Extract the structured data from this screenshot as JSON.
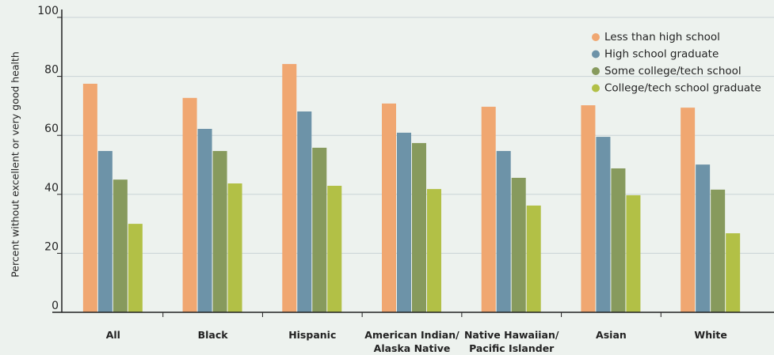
{
  "chart_data": {
    "type": "bar",
    "y_label": "Percent without excellent or very good health",
    "categories": [
      [
        "All"
      ],
      [
        "Black"
      ],
      [
        "Hispanic"
      ],
      [
        "American Indian/",
        "Alaska Native"
      ],
      [
        "Native Hawaiian/",
        "Pacific Islander"
      ],
      [
        "Asian"
      ],
      [
        "White"
      ]
    ],
    "series": [
      {
        "name": "Less than high school",
        "color": "#f0a771",
        "values": [
          77.5,
          72.7,
          84.2,
          70.8,
          69.7,
          70.2,
          69.4
        ]
      },
      {
        "name": "High school graduate",
        "color": "#6d93a8",
        "values": [
          54.7,
          62.2,
          68.1,
          60.9,
          54.7,
          59.5,
          50.1
        ]
      },
      {
        "name": "Some college/tech school",
        "color": "#879a5d",
        "values": [
          45,
          54.7,
          55.8,
          57.4,
          45.6,
          48.8,
          41.6
        ]
      },
      {
        "name": "College/tech school graduate",
        "color": "#b2c046",
        "values": [
          30,
          43.7,
          42.9,
          41.8,
          36.2,
          39.7,
          26.8
        ]
      }
    ],
    "ylim": [
      0,
      100
    ],
    "yticks": [
      0,
      20,
      40,
      60,
      80,
      100
    ],
    "grid": true,
    "legend": "top-right"
  }
}
